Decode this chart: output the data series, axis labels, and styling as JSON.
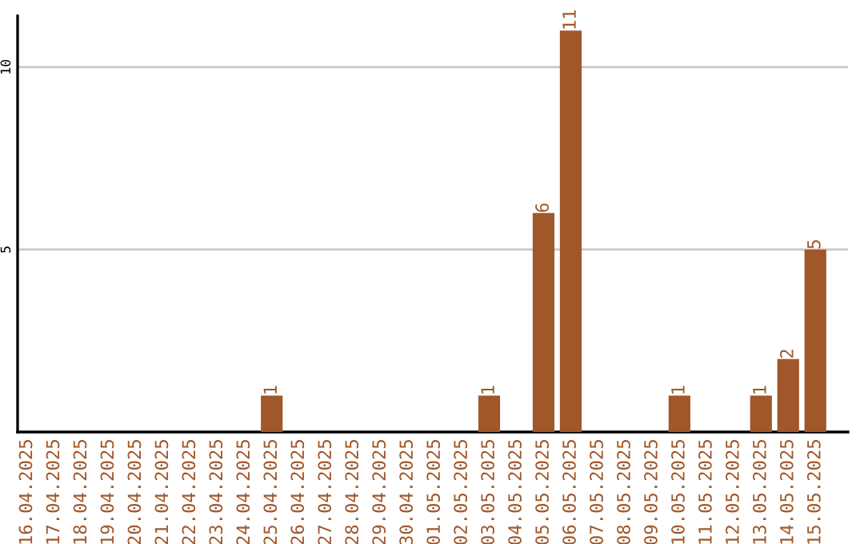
{
  "chart_data": {
    "type": "bar",
    "categories": [
      "16.04.2025",
      "17.04.2025",
      "18.04.2025",
      "19.04.2025",
      "20.04.2025",
      "21.04.2025",
      "22.04.2025",
      "23.04.2025",
      "24.04.2025",
      "25.04.2025",
      "26.04.2025",
      "27.04.2025",
      "28.04.2025",
      "29.04.2025",
      "30.04.2025",
      "01.05.2025",
      "02.05.2025",
      "03.05.2025",
      "04.05.2025",
      "05.05.2025",
      "06.05.2025",
      "07.05.2025",
      "08.05.2025",
      "09.05.2025",
      "10.05.2025",
      "11.05.2025",
      "12.05.2025",
      "13.05.2025",
      "14.05.2025",
      "15.05.2025"
    ],
    "values": [
      0,
      0,
      0,
      0,
      0,
      0,
      0,
      0,
      0,
      1,
      0,
      0,
      0,
      0,
      0,
      0,
      0,
      1,
      0,
      6,
      11,
      0,
      0,
      0,
      1,
      0,
      0,
      1,
      2,
      5
    ],
    "value_labels": [
      null,
      null,
      null,
      null,
      null,
      null,
      null,
      null,
      null,
      "1",
      null,
      null,
      null,
      null,
      null,
      null,
      null,
      "1",
      null,
      "6",
      "11",
      null,
      null,
      null,
      "1",
      null,
      null,
      "1",
      "2",
      "5"
    ],
    "color": "#a0572a",
    "ylim": [
      0,
      11.4
    ],
    "yticks": [
      5,
      10
    ],
    "grid": "y",
    "legend": false
  }
}
